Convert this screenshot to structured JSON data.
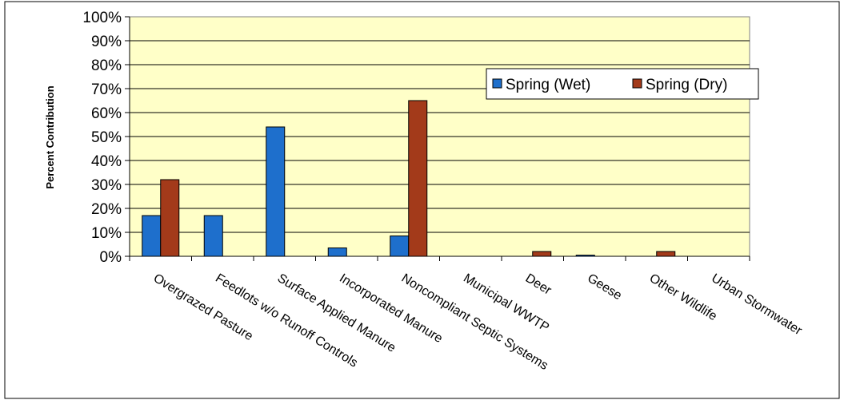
{
  "chart_data": {
    "type": "bar",
    "title": "",
    "xlabel": "",
    "ylabel": "Percent Contribution",
    "ylim": [
      0,
      100
    ],
    "yticks": [
      "0%",
      "10%",
      "20%",
      "30%",
      "40%",
      "50%",
      "60%",
      "70%",
      "80%",
      "90%",
      "100%"
    ],
    "grid": true,
    "legend_position": "right",
    "categories": [
      "Overgrazed Pasture",
      "Feedlots w/o Runoff Controls",
      "Surface Applied Manure",
      "Incorporated Manure",
      "Noncompliant Septic Systems",
      "Municipal WWTP",
      "Deer",
      "Geese",
      "Other Wildlife",
      "Urban Stormwater"
    ],
    "series": [
      {
        "name": "Spring (Wet)",
        "color": "#1e6fcc",
        "values": [
          17,
          17,
          54,
          3.5,
          8.5,
          0,
          0,
          0.5,
          0,
          0
        ]
      },
      {
        "name": "Spring (Dry)",
        "color": "#a33a1a",
        "values": [
          32,
          0,
          0,
          0,
          65,
          0,
          2,
          0,
          2,
          0
        ]
      }
    ],
    "plot_background": "#ffffc8"
  }
}
